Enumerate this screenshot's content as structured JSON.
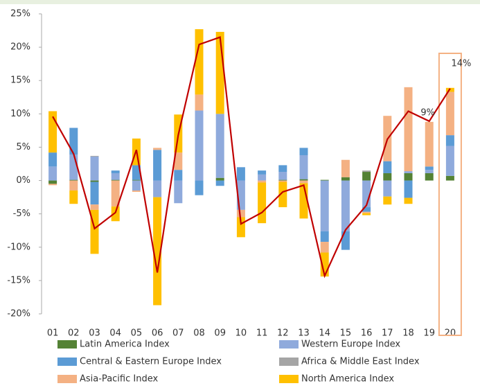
{
  "chart_data": {
    "type": "bar",
    "categories": [
      "01",
      "02",
      "03",
      "04",
      "05",
      "06",
      "07",
      "08",
      "09",
      "10",
      "11",
      "12",
      "13",
      "14",
      "15",
      "16",
      "17",
      "18",
      "19",
      "20"
    ],
    "stacked": true,
    "series": [
      {
        "name": "Latin America Index",
        "color": "#548235",
        "values": [
          -0.5,
          0.1,
          -0.2,
          0.1,
          0.1,
          0,
          0,
          0,
          0.4,
          0,
          0,
          0.1,
          0.2,
          0.1,
          0.5,
          1.3,
          1.1,
          1.1,
          1.1,
          0.7
        ]
      },
      {
        "name": "Western Europe Index",
        "color": "#8faadc",
        "values": [
          2.1,
          3.8,
          3.6,
          1.0,
          -1.5,
          -2.5,
          -3.4,
          10.5,
          9.6,
          -4.4,
          0.9,
          1.2,
          3.6,
          -7.6,
          -7.6,
          -4.0,
          -2.4,
          0.3,
          0.5,
          4.5
        ]
      },
      {
        "name": "Central & Eastern Europe Index",
        "color": "#5b9bd5",
        "values": [
          2.1,
          4.0,
          -3.4,
          0.4,
          2.2,
          4.6,
          1.6,
          -2.2,
          -0.8,
          2.0,
          0.6,
          1.0,
          1.1,
          -1.6,
          -2.8,
          -0.7,
          1.8,
          -2.6,
          0.5,
          1.6
        ]
      },
      {
        "name": "Africa & Middle East Index",
        "color": "#a5a5a5",
        "values": [
          0,
          0,
          0.1,
          0,
          0,
          0,
          0,
          0,
          0,
          0,
          0,
          0,
          0,
          0,
          0,
          0.2,
          0,
          0,
          0,
          0
        ]
      },
      {
        "name": "Asia-Pacific Index",
        "color": "#f4b183",
        "values": [
          -0.2,
          -1.5,
          -0.8,
          -3.9,
          -0.2,
          0.3,
          2.6,
          2.4,
          0,
          -1.1,
          -0.3,
          -0.2,
          -0.4,
          -1.6,
          2.6,
          -0.2,
          6.8,
          12.6,
          6.7,
          6.5
        ]
      },
      {
        "name": "North America Index",
        "color": "#ffc000",
        "values": [
          6.2,
          -2.0,
          -6.6,
          -2.2,
          4.0,
          -16.2,
          5.7,
          9.8,
          12.3,
          -3.0,
          -6.1,
          -3.8,
          -5.3,
          -3.6,
          0,
          -0.3,
          -1.2,
          -0.9,
          0,
          0.6
        ]
      }
    ],
    "total": {
      "color": "#c00000",
      "values": [
        9.6,
        4.0,
        -7.2,
        -4.8,
        4.6,
        -13.8,
        6.8,
        20.4,
        21.5,
        -6.5,
        -4.8,
        -1.7,
        -0.7,
        -14.3,
        -7.4,
        -3.7,
        6.2,
        10.4,
        8.9,
        13.8
      ],
      "value_labels": [
        null,
        null,
        null,
        null,
        null,
        null,
        null,
        null,
        null,
        null,
        null,
        null,
        null,
        null,
        null,
        null,
        null,
        null,
        "9%",
        "14%"
      ]
    },
    "highlight_category": 19,
    "ylim": [
      -20,
      25
    ],
    "yticks": [
      {
        "value": -20,
        "label": "-20%"
      },
      {
        "value": -15,
        "label": "-15%"
      },
      {
        "value": -10,
        "label": "-10%"
      },
      {
        "value": -5,
        "label": "-5%"
      },
      {
        "value": 0,
        "label": "0%"
      },
      {
        "value": 5,
        "label": "5%"
      },
      {
        "value": 10,
        "label": "10%"
      },
      {
        "value": 15,
        "label": "15%"
      },
      {
        "value": 20,
        "label": "20%"
      },
      {
        "value": 25,
        "label": "25%"
      }
    ]
  }
}
